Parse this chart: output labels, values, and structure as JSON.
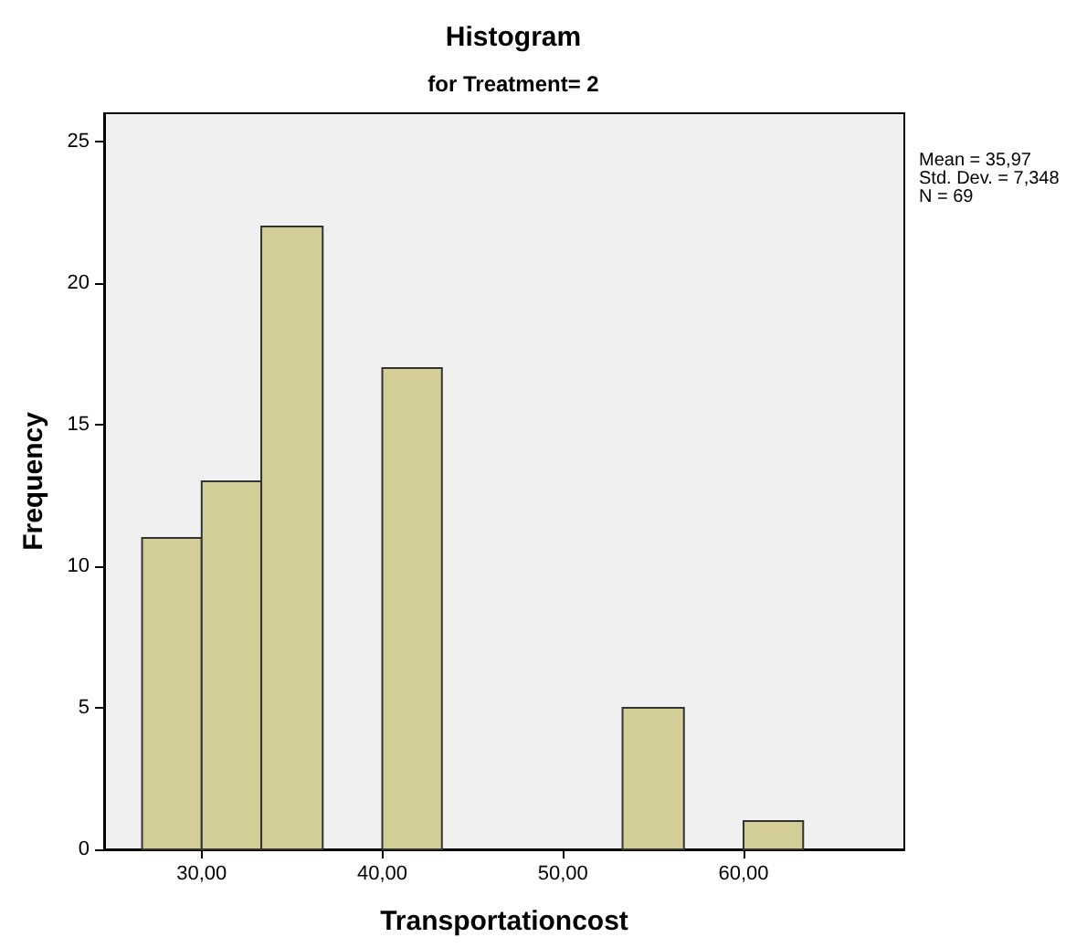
{
  "chart_data": {
    "type": "histogram",
    "title": "Histogram",
    "subtitle": "for Treatment= 2",
    "xlabel": "Transportationcost",
    "ylabel": "Frequency",
    "bins": [
      26.7,
      30,
      33.3,
      36.7,
      40,
      43.3,
      53.3,
      56.7,
      60,
      63.3
    ],
    "values": [
      11,
      13,
      22,
      0,
      17,
      0,
      5,
      0,
      1
    ],
    "color": "#d3ce97",
    "xlim": [
      24.6,
      68.9
    ],
    "xticks": [
      {
        "value": 30,
        "label": "30,00"
      },
      {
        "value": 40,
        "label": "40,00"
      },
      {
        "value": 50,
        "label": "50,00"
      },
      {
        "value": 60,
        "label": "60,00"
      }
    ],
    "ylim": [
      0,
      26
    ],
    "yticks": [
      0,
      5,
      10,
      15,
      20,
      25
    ],
    "grid": false,
    "annotations": [
      "Mean = 35,97",
      "Std. Dev. = 7,348",
      "N = 69"
    ]
  }
}
